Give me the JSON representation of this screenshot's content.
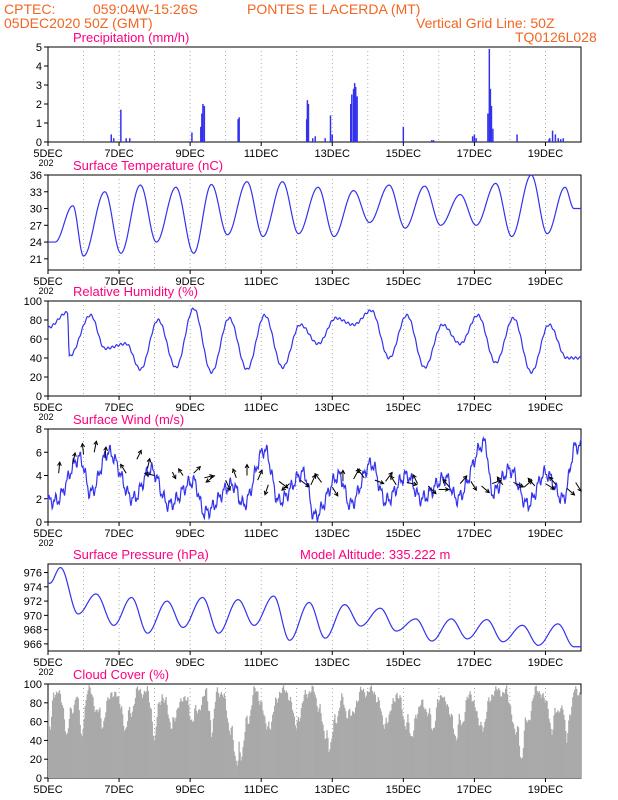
{
  "header": {
    "line1_left": "CPTEC:",
    "line1_coords": "059:04W-15:26S",
    "line1_place": "PONTES E LACERDA (MT)",
    "line2_left": "05DEC2020 50Z (GMT)",
    "line2_right": "Vertical Grid Line: 50Z",
    "line3_right": "TQ0126L028"
  },
  "x_axis": {
    "labels": [
      "5DEC",
      "7DEC",
      "9DEC",
      "11DEC",
      "13DEC",
      "15DEC",
      "17DEC",
      "19DEC"
    ],
    "stub_label": "202"
  },
  "colors": {
    "line": "#3333ee",
    "title": "#ff0080",
    "header": "#f26522",
    "cloud": "#a9a9a9",
    "grid": "#888888"
  },
  "chart_data": [
    {
      "id": "precip",
      "type": "bar",
      "title": "Precipitation (mm/h)",
      "ylim": [
        0,
        5
      ],
      "yticks": [
        "0",
        "1",
        "2",
        "3",
        "4",
        "5"
      ],
      "days": 15,
      "bars": [
        [
          1.78,
          0.4
        ],
        [
          1.85,
          0.2
        ],
        [
          2.05,
          1.7
        ],
        [
          2.2,
          0.2
        ],
        [
          2.3,
          0.2
        ],
        [
          4.05,
          0.5
        ],
        [
          4.3,
          0.8
        ],
        [
          4.33,
          1.5
        ],
        [
          4.36,
          2.0
        ],
        [
          4.4,
          1.9
        ],
        [
          5.35,
          1.2
        ],
        [
          5.38,
          1.3
        ],
        [
          7.28,
          1.2
        ],
        [
          7.3,
          2.2
        ],
        [
          7.33,
          2.0
        ],
        [
          7.45,
          0.2
        ],
        [
          7.52,
          0.3
        ],
        [
          7.8,
          0.2
        ],
        [
          7.95,
          1.4
        ],
        [
          8.0,
          0.4
        ],
        [
          8.52,
          2.0
        ],
        [
          8.55,
          2.5
        ],
        [
          8.6,
          2.8
        ],
        [
          8.63,
          3.1
        ],
        [
          8.66,
          2.9
        ],
        [
          8.7,
          2.4
        ],
        [
          10.0,
          0.8
        ],
        [
          10.8,
          0.1
        ],
        [
          10.85,
          0.1
        ],
        [
          11.95,
          0.3
        ],
        [
          12.0,
          0.4
        ],
        [
          12.05,
          0.2
        ],
        [
          12.38,
          1.5
        ],
        [
          12.42,
          4.9
        ],
        [
          12.45,
          2.8
        ],
        [
          12.48,
          1.9
        ],
        [
          12.52,
          0.7
        ],
        [
          13.2,
          0.4
        ],
        [
          14.1,
          0.15
        ],
        [
          14.12,
          0.2
        ],
        [
          14.2,
          0.6
        ],
        [
          14.28,
          0.4
        ],
        [
          14.36,
          0.2
        ],
        [
          14.43,
          0.15
        ],
        [
          14.5,
          0.2
        ]
      ]
    },
    {
      "id": "temp",
      "type": "line",
      "title": "Surface Temperature (nC)",
      "ylim": [
        19,
        36
      ],
      "yticks": [
        "21",
        "24",
        "27",
        "30",
        "33",
        "36"
      ],
      "ytick_values": [
        21,
        24,
        27,
        30,
        33,
        36
      ],
      "days": 15,
      "min_t": [
        0.2,
        1.0,
        2.05,
        3.05,
        4.1,
        5.05,
        6.05,
        7.05,
        8.05,
        9.05,
        10.05,
        11.05,
        12.05,
        13.05,
        14.05,
        14.8
      ],
      "min_v": [
        24,
        21.5,
        22,
        24,
        22,
        25.3,
        25,
        25.5,
        25,
        27.5,
        26.5,
        27,
        27,
        25,
        25.5,
        30
      ],
      "max_t": [
        0.7,
        1.6,
        2.6,
        3.6,
        4.6,
        5.6,
        6.6,
        7.6,
        8.6,
        9.6,
        10.6,
        11.6,
        12.6,
        13.6,
        14.55
      ],
      "max_v": [
        30.5,
        33,
        34.2,
        33.8,
        34.3,
        34.8,
        34.8,
        33.8,
        33.2,
        34.2,
        34,
        32.5,
        34.5,
        36,
        33.8
      ]
    },
    {
      "id": "rh",
      "type": "line",
      "title": "Relative Humidity (%)",
      "ylim": [
        0,
        100
      ],
      "yticks": [
        "0",
        "20",
        "40",
        "60",
        "80",
        "100"
      ],
      "ytick_values": [
        0,
        20,
        40,
        60,
        80,
        100
      ],
      "days": 15,
      "min_t": [
        0.6,
        1.6,
        2.6,
        3.6,
        4.6,
        5.6,
        6.6,
        7.6,
        8.6,
        9.6,
        10.6,
        11.6,
        12.6,
        13.6,
        14.6
      ],
      "min_v": [
        42,
        50,
        28,
        30,
        25,
        28,
        30,
        55,
        75,
        40,
        30,
        55,
        35,
        25,
        40
      ],
      "max_t": [
        0.0,
        0.55,
        1.2,
        2.2,
        3.1,
        4.1,
        5.1,
        6.1,
        7.1,
        8.1,
        9.1,
        10.1,
        11.1,
        12.1,
        13.1,
        14.1
      ],
      "max_v": [
        72,
        88,
        85,
        55,
        80,
        92,
        82,
        85,
        75,
        82,
        90,
        85,
        75,
        85,
        82,
        75
      ]
    },
    {
      "id": "wind",
      "type": "line",
      "title": "Surface Wind (m/s)",
      "ylim": [
        0,
        8
      ],
      "yticks": [
        "0",
        "2",
        "4",
        "6",
        "8"
      ],
      "ytick_values": [
        0,
        2,
        4,
        6,
        8
      ],
      "days": 15,
      "min_t": [
        0.2,
        1.2,
        2.4,
        3.4,
        4.4,
        5.5,
        6.5,
        7.5,
        8.5,
        9.5,
        10.5,
        11.5,
        12.5,
        13.5,
        14.5
      ],
      "min_v": [
        1.8,
        2.5,
        2.0,
        1.5,
        0.8,
        1.5,
        1.8,
        0.5,
        1.5,
        1.8,
        2.0,
        2.0,
        2.5,
        1.5,
        2.0
      ],
      "max_t": [
        0.9,
        1.7,
        2.9,
        4.1,
        5.2,
        6.1,
        7.2,
        8.2,
        9.1,
        10.1,
        11.2,
        12.3,
        13.0,
        14.0,
        14.85
      ],
      "max_v": [
        5.5,
        6.0,
        4.5,
        3.5,
        3.2,
        6.2,
        4.2,
        4.0,
        5.0,
        4.0,
        3.8,
        6.8,
        4.5,
        4.2,
        6.5
      ],
      "arrows": [
        [
          0.3,
          4.2,
          0.1,
          1.0
        ],
        [
          0.7,
          5.0,
          0.2,
          1.0
        ],
        [
          1.0,
          5.8,
          -0.1,
          1.0
        ],
        [
          1.3,
          6.0,
          0.2,
          1.0
        ],
        [
          1.6,
          5.5,
          0.1,
          1.0
        ],
        [
          2.2,
          4.2,
          -0.5,
          0.8
        ],
        [
          2.5,
          5.4,
          0.4,
          0.8
        ],
        [
          2.8,
          4.6,
          0.2,
          0.9
        ],
        [
          3.0,
          4.0,
          -0.9,
          0.2
        ],
        [
          3.5,
          4.3,
          0.3,
          -0.6
        ],
        [
          3.8,
          4.0,
          -0.4,
          0.6
        ],
        [
          4.1,
          4.2,
          0.6,
          0.6
        ],
        [
          4.4,
          3.8,
          0.8,
          0.2
        ],
        [
          4.7,
          4.0,
          -0.8,
          -0.6
        ],
        [
          5.0,
          3.6,
          0.4,
          -0.9
        ],
        [
          5.3,
          3.8,
          -0.3,
          0.8
        ],
        [
          5.6,
          4.0,
          0.0,
          1.0
        ],
        [
          5.9,
          3.6,
          0.4,
          0.9
        ],
        [
          6.2,
          3.2,
          -0.3,
          -0.9
        ],
        [
          6.5,
          3.5,
          0.8,
          -0.6
        ],
        [
          6.8,
          3.3,
          -0.7,
          -0.6
        ],
        [
          7.1,
          3.6,
          0.8,
          -0.6
        ],
        [
          7.4,
          3.2,
          0.4,
          0.9
        ],
        [
          7.7,
          3.4,
          -0.6,
          0.8
        ],
        [
          8.0,
          3.0,
          0.5,
          -0.8
        ],
        [
          8.3,
          3.5,
          0.0,
          1.0
        ],
        [
          8.6,
          3.7,
          0.5,
          0.9
        ],
        [
          8.9,
          3.8,
          -0.6,
          0.8
        ],
        [
          9.2,
          3.6,
          0.8,
          -0.3
        ],
        [
          9.5,
          3.5,
          0.6,
          0.8
        ],
        [
          9.8,
          3.2,
          -0.5,
          0.8
        ],
        [
          10.1,
          3.4,
          0.9,
          -0.2
        ],
        [
          10.4,
          3.3,
          -0.4,
          0.8
        ],
        [
          10.7,
          3.1,
          0.7,
          -0.7
        ],
        [
          11.0,
          2.8,
          0.9,
          0.0
        ],
        [
          11.3,
          3.0,
          -0.6,
          0.7
        ],
        [
          11.6,
          3.3,
          0.6,
          0.7
        ],
        [
          11.9,
          3.5,
          0.5,
          -0.8
        ],
        [
          12.2,
          3.1,
          0.7,
          -0.6
        ],
        [
          12.5,
          3.3,
          0.8,
          0.3
        ],
        [
          12.8,
          3.2,
          -0.5,
          0.7
        ],
        [
          13.1,
          3.4,
          0.9,
          -0.4
        ],
        [
          13.4,
          3.0,
          0.7,
          0.6
        ],
        [
          13.7,
          3.1,
          -0.6,
          0.7
        ],
        [
          14.0,
          3.3,
          0.8,
          -0.5
        ],
        [
          14.3,
          3.2,
          -0.6,
          0.7
        ],
        [
          14.6,
          2.9,
          0.7,
          -0.6
        ],
        [
          14.85,
          3.4,
          0.5,
          -0.8
        ]
      ]
    },
    {
      "id": "pressure",
      "type": "line",
      "title": "Surface Pressure (hPa)",
      "subtitle": "Model Altitude: 335.222 m",
      "ylim": [
        965,
        977.2
      ],
      "yticks": [
        "966",
        "968",
        "970",
        "972",
        "974",
        "976"
      ],
      "ytick_values": [
        966,
        968,
        970,
        972,
        974,
        976
      ],
      "days": 15,
      "min_t": [
        0.05,
        0.85,
        1.85,
        2.8,
        3.8,
        4.8,
        5.8,
        6.8,
        7.8,
        8.8,
        9.8,
        10.8,
        11.8,
        12.8,
        13.8,
        14.8
      ],
      "min_v": [
        974.5,
        970.2,
        968.6,
        967.5,
        968.3,
        967.5,
        968.6,
        966.5,
        966.8,
        968.5,
        967.8,
        966.4,
        966.7,
        966.3,
        965.8,
        965.6
      ],
      "max_t": [
        0.35,
        1.35,
        2.35,
        3.35,
        4.35,
        5.35,
        6.35,
        7.35,
        8.35,
        9.35,
        10.35,
        11.35,
        12.35,
        13.35,
        14.35
      ],
      "max_v": [
        976.7,
        973.0,
        972.5,
        972.0,
        972.5,
        972.2,
        972.7,
        971.8,
        971.5,
        971.0,
        969.5,
        969.5,
        969.4,
        968.6,
        968.8
      ]
    },
    {
      "id": "cloud",
      "type": "area",
      "title": "Cloud Cover (%)",
      "ylim": [
        0,
        100
      ],
      "yticks": [
        "0",
        "20",
        "40",
        "60",
        "80",
        "100"
      ],
      "ytick_values": [
        0,
        20,
        40,
        60,
        80,
        100
      ],
      "days": 15,
      "dips": [
        [
          0.05,
          0.1,
          55
        ],
        [
          0.55,
          0.25,
          50
        ],
        [
          0.95,
          0.15,
          55
        ],
        [
          1.5,
          0.3,
          40
        ],
        [
          2.2,
          0.3,
          45
        ],
        [
          3.0,
          0.2,
          55
        ],
        [
          3.5,
          0.3,
          45
        ],
        [
          4.1,
          0.35,
          35
        ],
        [
          4.6,
          0.15,
          50
        ],
        [
          5.35,
          0.45,
          92
        ],
        [
          6.2,
          0.3,
          50
        ],
        [
          7.0,
          0.25,
          45
        ],
        [
          7.9,
          0.4,
          70
        ],
        [
          8.5,
          0.3,
          35
        ],
        [
          9.5,
          0.3,
          45
        ],
        [
          10.2,
          0.4,
          55
        ],
        [
          10.8,
          0.3,
          45
        ],
        [
          11.5,
          0.4,
          55
        ],
        [
          12.2,
          0.3,
          50
        ],
        [
          13.3,
          0.4,
          75
        ],
        [
          14.2,
          0.3,
          45
        ],
        [
          14.6,
          0.2,
          55
        ]
      ]
    }
  ]
}
